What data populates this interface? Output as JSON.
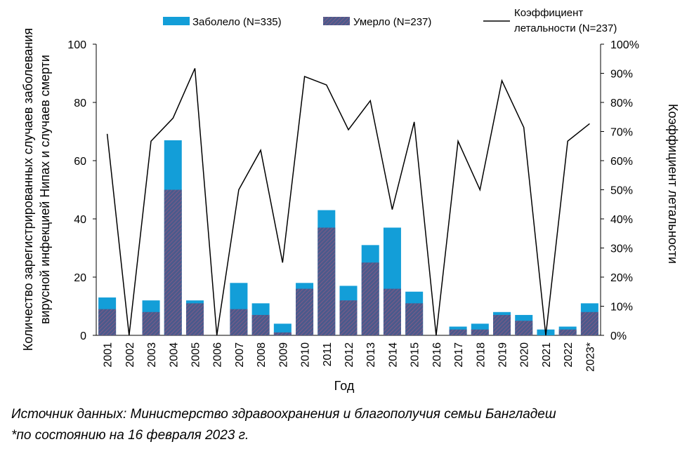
{
  "chart_data": {
    "type": "bar",
    "stacked_overlay": true,
    "xlabel": "Год",
    "ylabel_left_lines": [
      "Количество зарегистрированных случаев заболевания",
      "вирусной инфекцией Нипах и случаев смерти"
    ],
    "ylabel_right": "Коэффициент летальности",
    "ylim_left": [
      0,
      100
    ],
    "yticks_left": [
      0,
      20,
      40,
      60,
      80,
      100
    ],
    "ylim_right": [
      0,
      100
    ],
    "yticks_right": [
      "0%",
      "10%",
      "20%",
      "30%",
      "40%",
      "50%",
      "60%",
      "70%",
      "80%",
      "90%",
      "100%"
    ],
    "categories": [
      "2001",
      "2002",
      "2003",
      "2004",
      "2005",
      "2006",
      "2007",
      "2008",
      "2009",
      "2010",
      "2011",
      "2012",
      "2013",
      "2014",
      "2015",
      "2016",
      "2017",
      "2018",
      "2019",
      "2020",
      "2021",
      "2022",
      "2023*"
    ],
    "series": [
      {
        "name": "Заболело (N=335)",
        "kind": "bar",
        "axis": "left",
        "color": "#139ED8",
        "values": [
          13,
          0,
          12,
          67,
          12,
          0,
          18,
          11,
          4,
          18,
          43,
          17,
          31,
          37,
          15,
          0,
          3,
          4,
          8,
          7,
          2,
          3,
          11
        ]
      },
      {
        "name": "Умерло (N=237)",
        "kind": "bar-hatched",
        "axis": "left",
        "color": "#4A5A8C",
        "values": [
          9,
          0,
          8,
          50,
          11,
          0,
          9,
          7,
          1,
          16,
          37,
          12,
          25,
          16,
          11,
          0,
          2,
          2,
          7,
          5,
          0,
          2,
          8
        ]
      },
      {
        "name_lines": [
          "Коэффициент",
          "летальности (N=237)"
        ],
        "kind": "line",
        "axis": "right",
        "color": "#000000",
        "values": [
          69.2,
          0,
          66.7,
          74.6,
          91.7,
          0,
          50,
          63.6,
          25,
          88.9,
          86,
          70.6,
          80.6,
          43.2,
          73.3,
          0,
          66.7,
          50,
          87.5,
          71.4,
          0,
          66.7,
          72.7
        ]
      }
    ],
    "legend_position": "top"
  },
  "notes": {
    "source": "Источник данных: Министерство здравоохранения и благополучия семьи Бангладеш",
    "footnote": "*по состоянию на 16 февраля 2023 г."
  }
}
